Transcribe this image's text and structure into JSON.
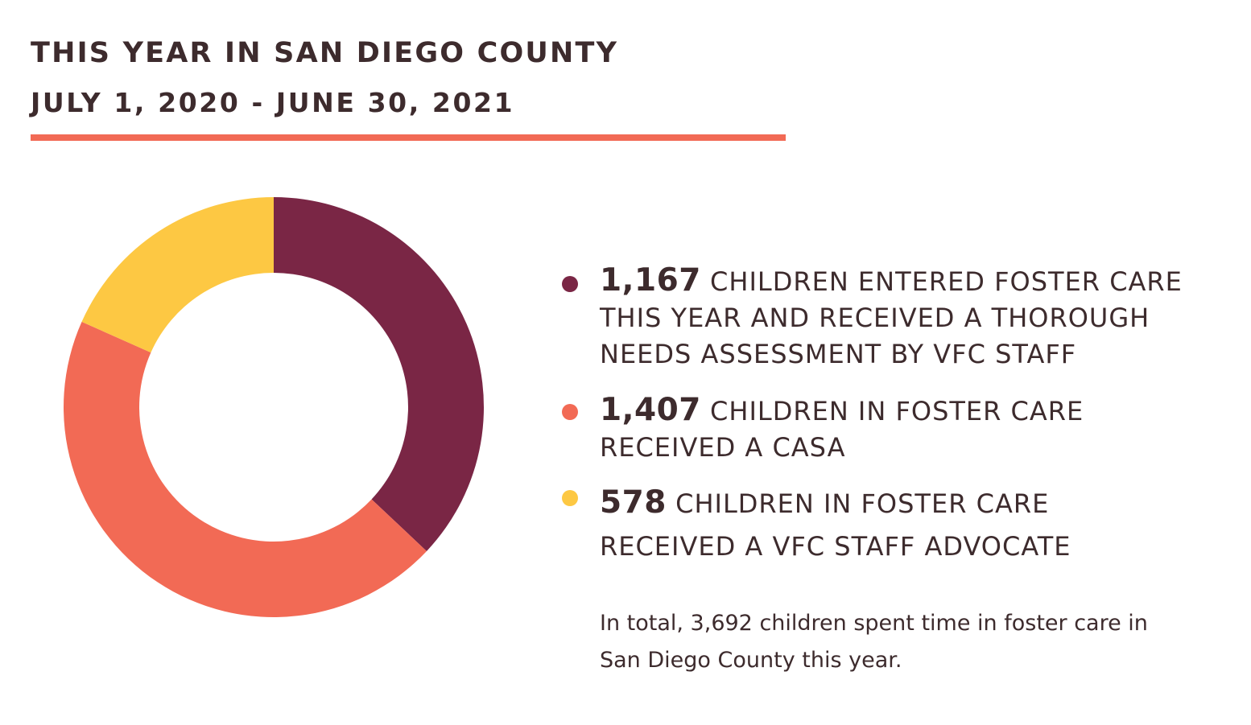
{
  "chart_data": {
    "type": "pie",
    "title": "THIS YEAR IN SAN DIEGO COUNTY",
    "subtitle": "JULY 1, 2020 - JUNE 30, 2021",
    "donut": true,
    "slices": [
      {
        "value": 1167,
        "value_label": "1,167",
        "color": "#7a2645",
        "lines": [
          "CHILDREN ENTERED FOSTER CARE",
          "THIS YEAR AND RECEIVED A THOROUGH",
          "NEEDS ASSESSMENT BY VFC STAFF"
        ]
      },
      {
        "value": 1407,
        "value_label": "1,407",
        "color": "#f26a55",
        "lines": [
          "CHILDREN IN FOSTER CARE",
          "RECEIVED A CASA"
        ]
      },
      {
        "value": 578,
        "value_label": "578",
        "color": "#fdc843",
        "lines": [
          "CHILDREN IN FOSTER CARE",
          "RECEIVED A VFC STAFF ADVOCATE"
        ]
      }
    ],
    "legend_placement": "right"
  },
  "note": {
    "line1": "In total, 3,692 children spent time in foster care in",
    "line2": "San Diego County this year."
  },
  "colors": {
    "text": "#3d2b2d",
    "accent_rule": "#f26a55"
  }
}
